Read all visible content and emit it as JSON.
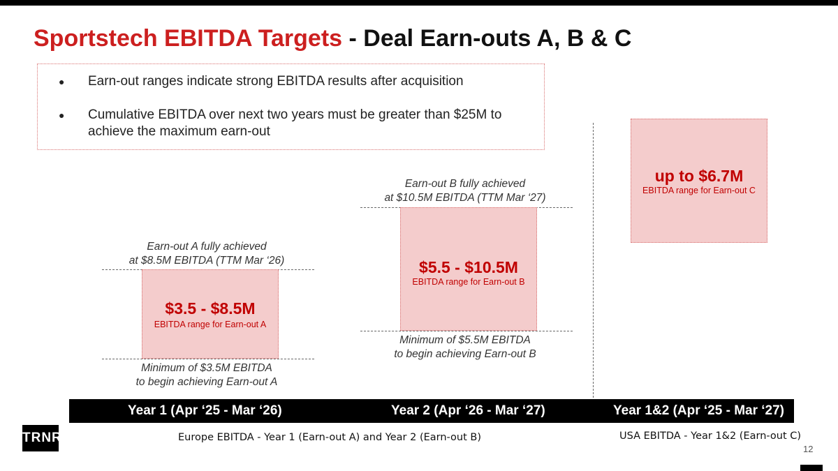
{
  "title": {
    "highlight": "Sportstech EBITDA Targets",
    "rest": " - Deal Earn-outs A, B & C"
  },
  "bullets": [
    {
      "marker": "●",
      "text": "Earn-out ranges indicate strong EBITDA results after acquisition"
    },
    {
      "marker": "●",
      "text": "Cumulative EBITDA over next two years must be greater than $25M to achieve the maximum earn-out"
    }
  ],
  "earnouts": {
    "a": {
      "top_note": [
        "Earn-out A fully achieved",
        "at $8.5M EBITDA (TTM Mar ‘26)"
      ],
      "range": "$3.5 - $8.5M",
      "range_label": "EBITDA range for Earn-out A",
      "bottom_note": [
        "Minimum of $3.5M EBITDA",
        "to begin achieving Earn-out A"
      ]
    },
    "b": {
      "top_note": [
        "Earn-out B fully achieved",
        "at $10.5M EBITDA (TTM Mar ‘27)"
      ],
      "range": "$5.5 - $10.5M",
      "range_label": "EBITDA range for Earn-out B",
      "bottom_note": [
        "Minimum of $5.5M EBITDA",
        "to begin achieving Earn-out B"
      ]
    },
    "c": {
      "range": "up to $6.7M",
      "range_label": "EBITDA range for Earn-out C"
    }
  },
  "periods": [
    "Year 1 (Apr ‘25 - Mar ‘26)",
    "Year 2 (Apr ‘26 - Mar ‘27)",
    "Year 1&2 (Apr ‘25 - Mar ‘27)"
  ],
  "regions": {
    "europe": "Europe EBITDA - Year 1 (Earn-out A) and Year 2 (Earn-out B)",
    "usa": "USA EBITDA - Year 1&2 (Earn-out C)"
  },
  "logo": "TRNR",
  "page_number": "12",
  "colors": {
    "accent": "#cc1f1f",
    "range_fill": "#f4cccc",
    "range_border": "#d97070",
    "bar": "#000000"
  }
}
